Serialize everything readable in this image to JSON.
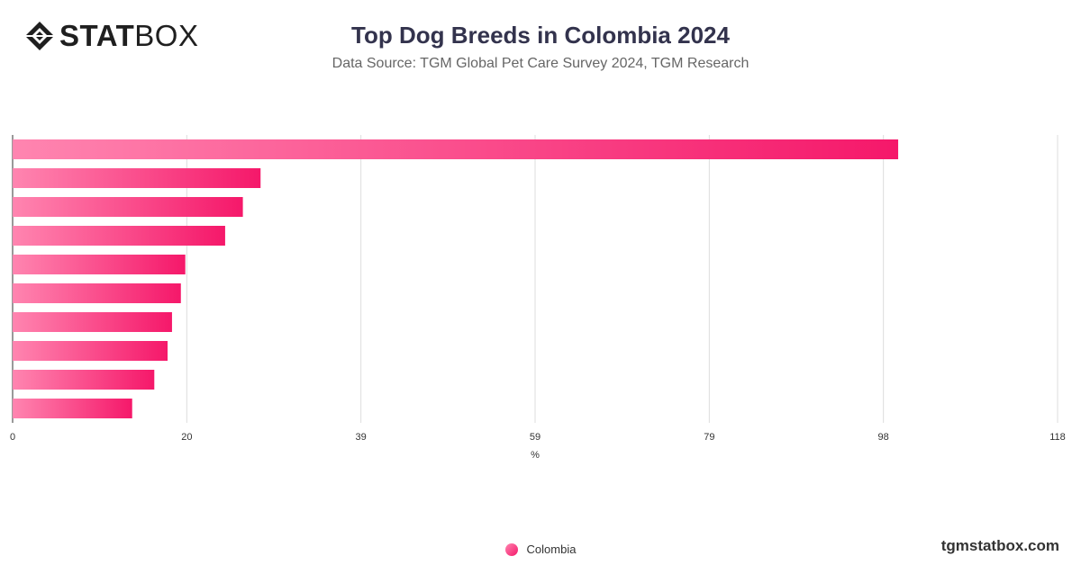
{
  "header": {
    "logo_bold": "STAT",
    "logo_light": "BOX",
    "title": "Top Dog Breeds in Colombia 2024",
    "subtitle": "Data Source: TGM Global Pet Care Survey 2024, TGM Research"
  },
  "footer": {
    "brand": "tgmstatbox.com"
  },
  "colors": {
    "bar_start": "#ff85b0",
    "bar_end": "#f5186a",
    "grid": "#dddddd",
    "axis_text": "#333333"
  },
  "chart_data": {
    "type": "bar",
    "orientation": "horizontal",
    "title": "Top Dog Breeds in Colombia 2024",
    "subtitle": "Data Source: TGM Global Pet Care Survey 2024, TGM Research",
    "xlabel": "%",
    "xlim": [
      0,
      118
    ],
    "x_ticks": [
      "0",
      "20",
      "39",
      "59",
      "79",
      "98",
      "118"
    ],
    "grid": true,
    "legend_position": "bottom",
    "series": [
      {
        "name": "Colombia",
        "values": [
          100,
          28,
          26,
          24,
          19.5,
          19,
          18,
          17.5,
          16,
          13.5
        ]
      }
    ]
  }
}
